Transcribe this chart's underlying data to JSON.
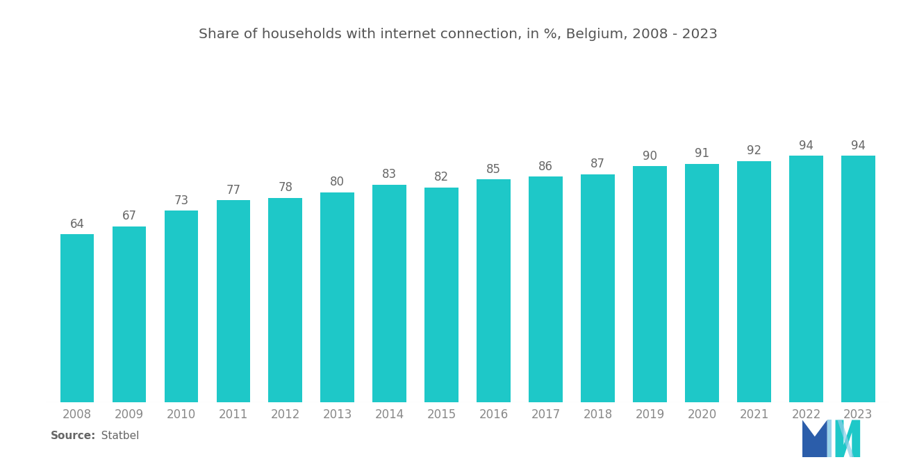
{
  "title": "Share of households with internet connection, in %, Belgium, 2008 - 2023",
  "years": [
    2008,
    2009,
    2010,
    2011,
    2012,
    2013,
    2014,
    2015,
    2016,
    2017,
    2018,
    2019,
    2020,
    2021,
    2022,
    2023
  ],
  "values": [
    64,
    67,
    73,
    77,
    78,
    80,
    83,
    82,
    85,
    86,
    87,
    90,
    91,
    92,
    94,
    94
  ],
  "bar_color": "#1EC8C8",
  "background_color": "#ffffff",
  "title_color": "#555555",
  "label_color": "#666666",
  "tick_color": "#888888",
  "source_bold": "Source:",
  "source_normal": "  Statbel",
  "ylim": [
    0,
    120
  ],
  "title_fontsize": 14.5,
  "label_fontsize": 12,
  "tick_fontsize": 12,
  "bar_width": 0.65,
  "logo_blue": "#2B5DAA",
  "logo_teal": "#1EC8C8",
  "logo_light": "#8ECFE8"
}
